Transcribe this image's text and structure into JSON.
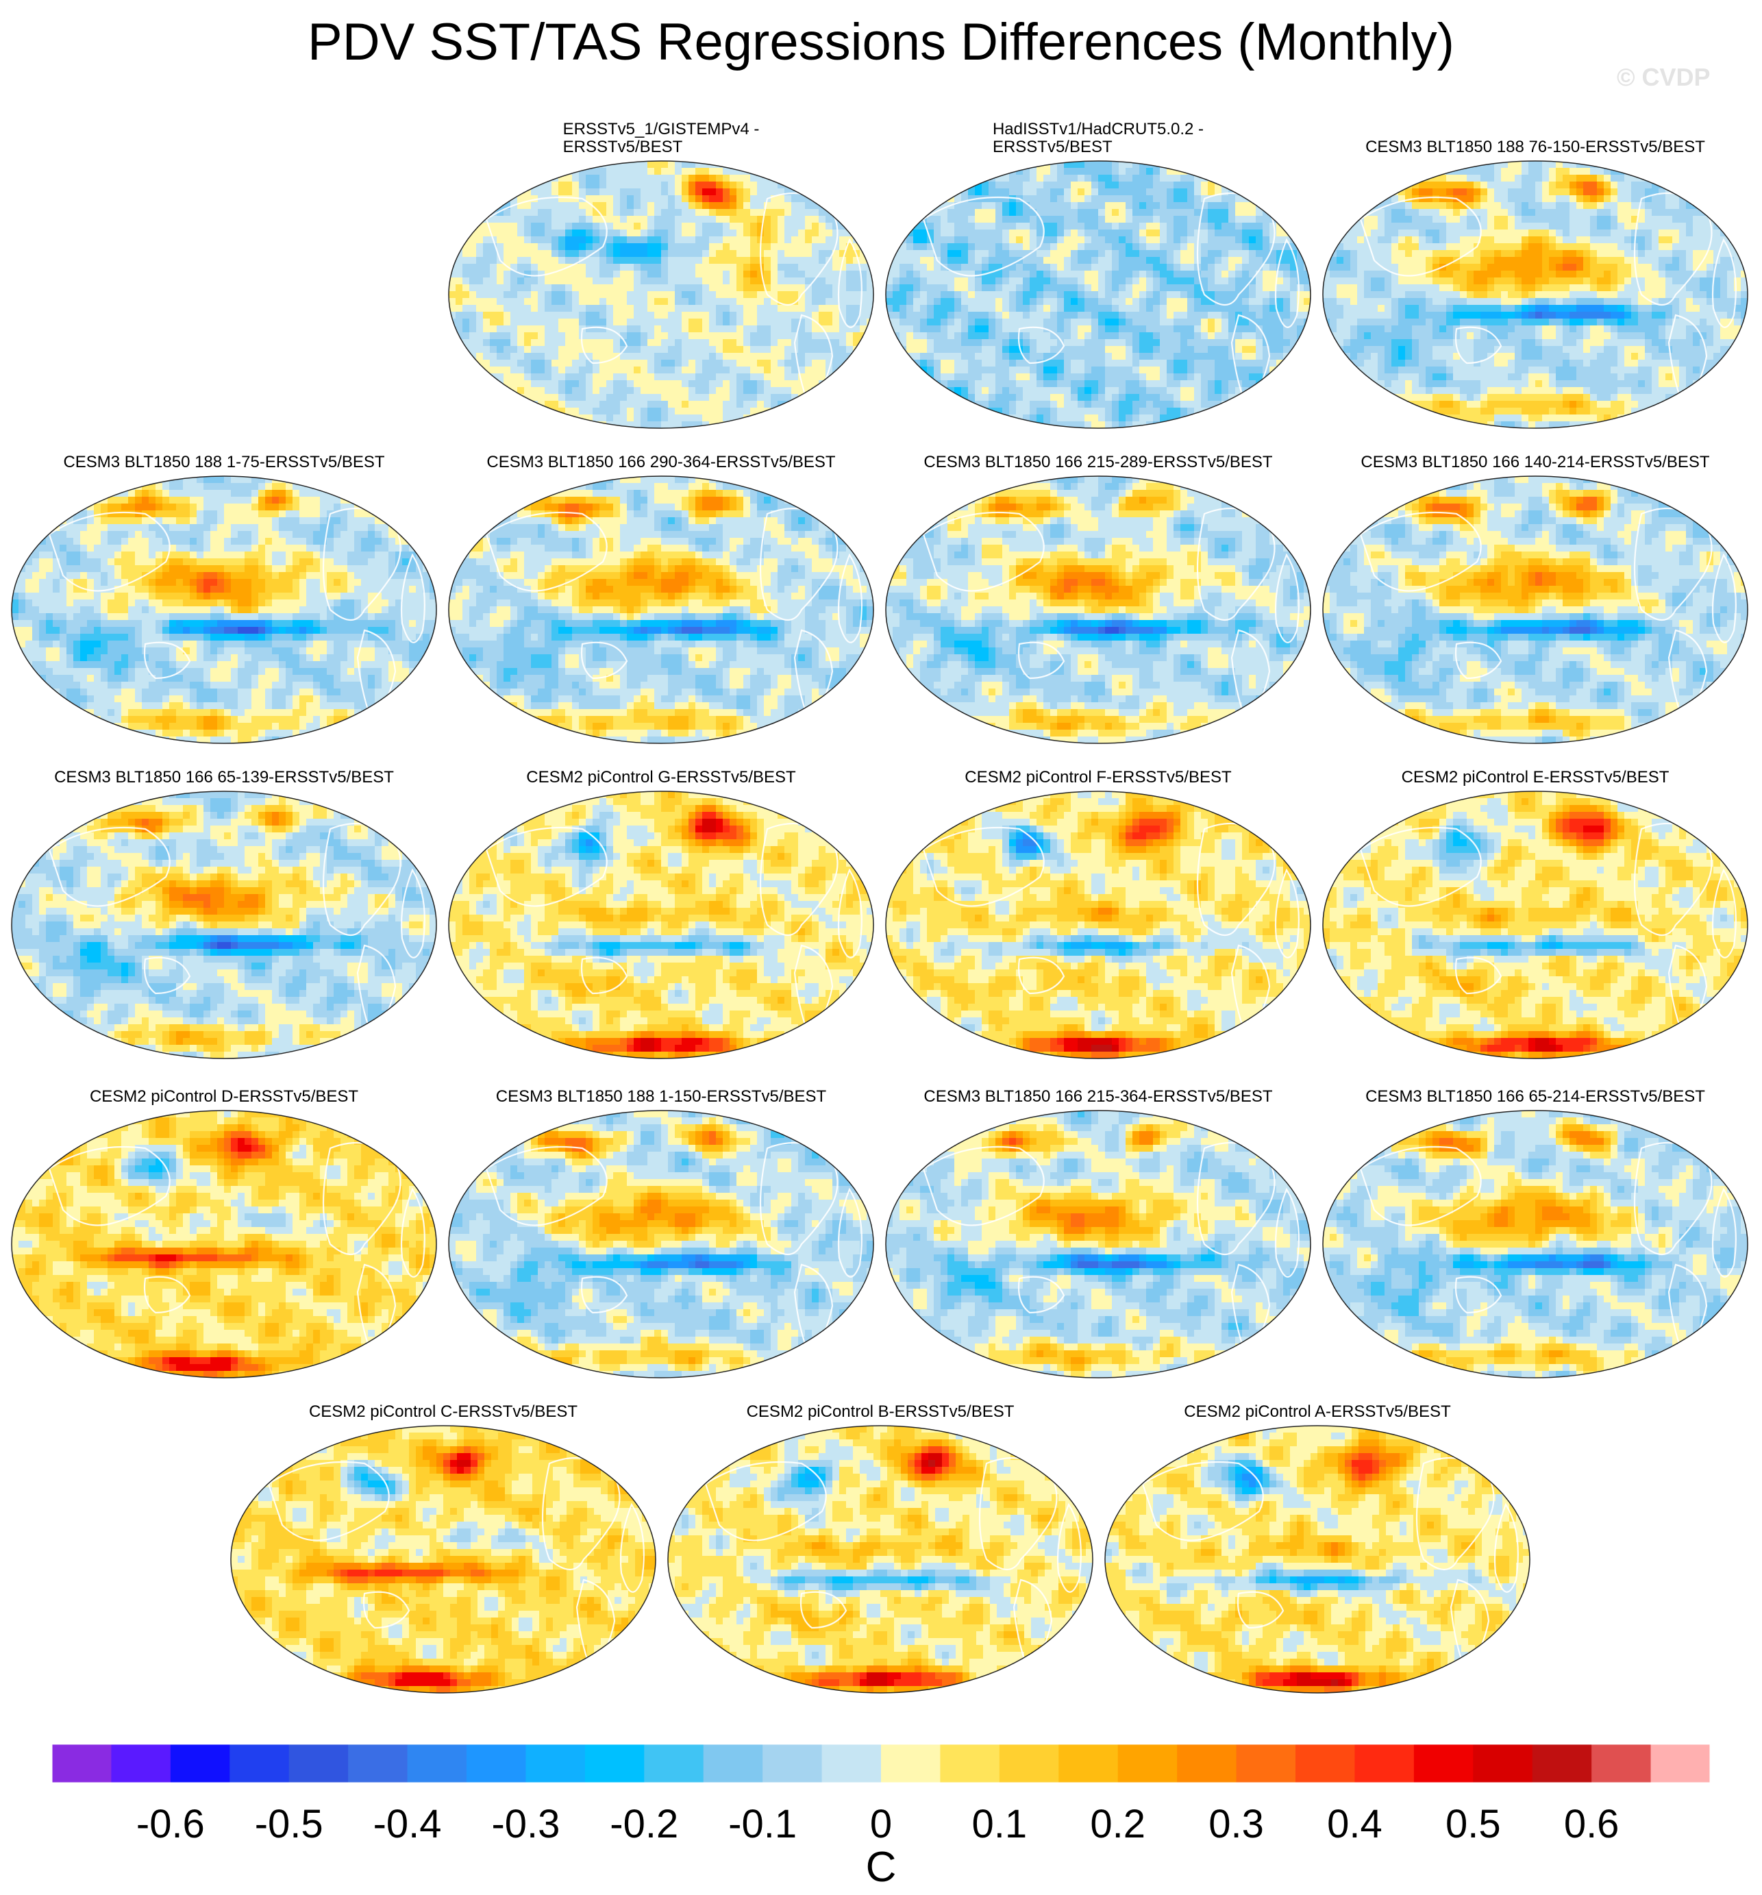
{
  "title": "PDV SST/TAS Regressions Differences (Monthly)",
  "watermark": "© CVDP",
  "chart_data": {
    "type": "heatmap",
    "projection": "robinson-like ellipse, pacific-centered",
    "units": "C",
    "panels": [
      {
        "id": "p1",
        "title": "ERSSTv5_1/GISTEMPv4 -\nERSSTv5/BEST",
        "pattern": "obs1"
      },
      {
        "id": "p2",
        "title": "HadISSTv1/HadCRUT5.0.2 -\nERSSTv5/BEST",
        "pattern": "obs2"
      },
      {
        "id": "p3",
        "title": "CESM3 BLT1850 188 76-150-ERSSTv5/BEST",
        "pattern": "warmNP"
      },
      {
        "id": "p4",
        "title": "CESM3 BLT1850 188 1-75-ERSSTv5/BEST",
        "pattern": "warmNP"
      },
      {
        "id": "p5",
        "title": "CESM3 BLT1850 166 290-364-ERSSTv5/BEST",
        "pattern": "warmNP"
      },
      {
        "id": "p6",
        "title": "CESM3 BLT1850 166 215-289-ERSSTv5/BEST",
        "pattern": "warmNP"
      },
      {
        "id": "p7",
        "title": "CESM3 BLT1850 166 140-214-ERSSTv5/BEST",
        "pattern": "warmNP"
      },
      {
        "id": "p8",
        "title": "CESM3 BLT1850 166 65-139-ERSSTv5/BEST",
        "pattern": "warmNP"
      },
      {
        "id": "p9",
        "title": "CESM2 piControl G-ERSSTv5/BEST",
        "pattern": "cesm2"
      },
      {
        "id": "p10",
        "title": "CESM2 piControl F-ERSSTv5/BEST",
        "pattern": "cesm2"
      },
      {
        "id": "p11",
        "title": "CESM2 piControl E-ERSSTv5/BEST",
        "pattern": "cesm2"
      },
      {
        "id": "p12",
        "title": "CESM2 piControl D-ERSSTv5/BEST",
        "pattern": "cesm2warm"
      },
      {
        "id": "p13",
        "title": "CESM3 BLT1850 188 1-150-ERSSTv5/BEST",
        "pattern": "warmNP"
      },
      {
        "id": "p14",
        "title": "CESM3 BLT1850 166 215-364-ERSSTv5/BEST",
        "pattern": "warmNP"
      },
      {
        "id": "p15",
        "title": "CESM3 BLT1850 166 65-214-ERSSTv5/BEST",
        "pattern": "warmNP"
      },
      {
        "id": "p16",
        "title": "CESM2 piControl C-ERSSTv5/BEST",
        "pattern": "cesm2warm"
      },
      {
        "id": "p17",
        "title": "CESM2 piControl B-ERSSTv5/BEST",
        "pattern": "cesm2"
      },
      {
        "id": "p18",
        "title": "CESM2 piControl A-ERSSTv5/BEST",
        "pattern": "cesm2"
      }
    ],
    "colorbar": {
      "levels": [
        -0.65,
        -0.6,
        -0.55,
        -0.5,
        -0.45,
        -0.4,
        -0.35,
        -0.3,
        -0.25,
        -0.2,
        -0.15,
        -0.1,
        -0.05,
        0,
        0.05,
        0.1,
        0.15,
        0.2,
        0.25,
        0.3,
        0.35,
        0.4,
        0.45,
        0.5,
        0.55,
        0.6,
        0.65,
        0.7
      ],
      "colors": [
        "#8a2be2",
        "#5a1aff",
        "#1010ff",
        "#2040f0",
        "#3055e0",
        "#3a6ee5",
        "#2f86f2",
        "#1e96ff",
        "#10b0ff",
        "#00c0ff",
        "#40c4f4",
        "#80c8f0",
        "#a5d4f0",
        "#c6e5f3",
        "#fff8b0",
        "#ffe45a",
        "#ffd030",
        "#ffbc10",
        "#ffa400",
        "#ff8a00",
        "#ff6e10",
        "#ff4a10",
        "#ff2a10",
        "#f00000",
        "#d80000",
        "#c01010",
        "#e05050",
        "#ffb0b0"
      ],
      "tick_labels": [
        "-0.6",
        "-0.5",
        "-0.4",
        "-0.3",
        "-0.2",
        "-0.1",
        "0",
        "0.1",
        "0.2",
        "0.3",
        "0.4",
        "0.5",
        "0.6"
      ],
      "tick_values": [
        -0.6,
        -0.5,
        -0.4,
        -0.3,
        -0.2,
        -0.1,
        0,
        0.1,
        0.2,
        0.3,
        0.4,
        0.5,
        0.6
      ]
    }
  }
}
